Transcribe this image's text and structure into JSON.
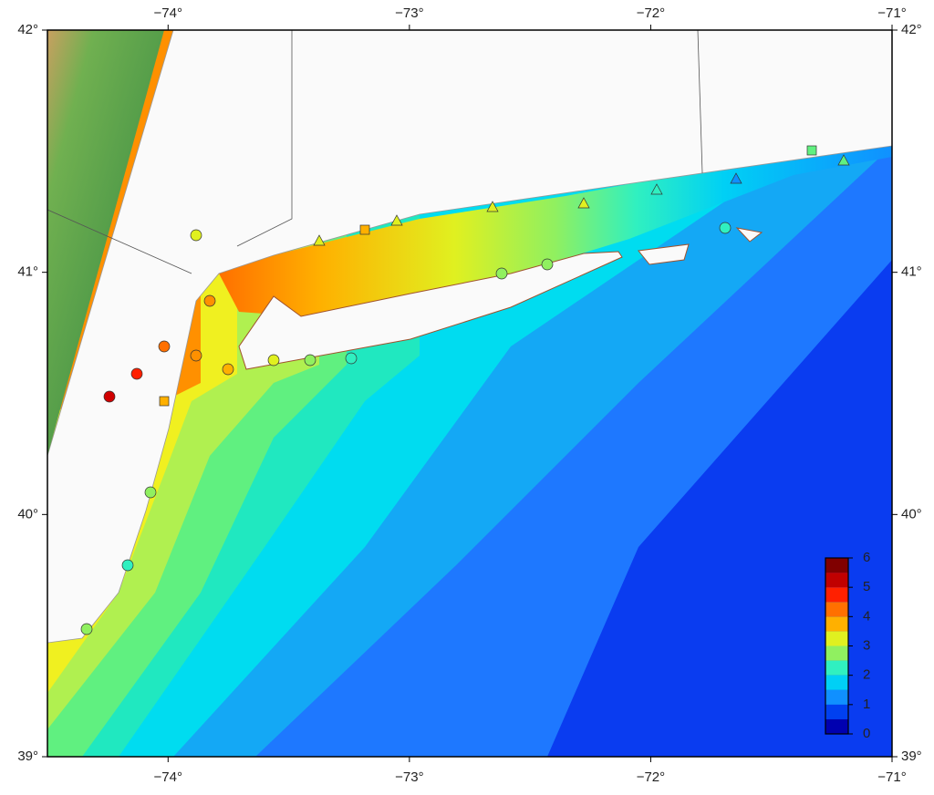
{
  "map": {
    "lon_ticks": [
      {
        "value": -74,
        "label": "−74°"
      },
      {
        "value": -73,
        "label": "−73°"
      },
      {
        "value": -72,
        "label": "−72°"
      },
      {
        "value": -71,
        "label": "−71°"
      }
    ],
    "lat_ticks": [
      {
        "value": 39,
        "label": "39°"
      },
      {
        "value": 40,
        "label": "40°"
      },
      {
        "value": 41,
        "label": "41°"
      },
      {
        "value": 42,
        "label": "42°"
      }
    ],
    "lon_range": [
      -74.5,
      -71
    ],
    "lat_range": [
      39,
      42
    ],
    "colorbar": {
      "lim": [
        0,
        6
      ],
      "ticks": [
        0,
        1,
        2,
        3,
        4,
        5,
        6
      ],
      "colors": [
        "#0000b0",
        "#0040f0",
        "#1090ff",
        "#00d0f5",
        "#30f0c0",
        "#90f060",
        "#e0f020",
        "#ffb000",
        "#ff7000",
        "#ff2000",
        "#c00000",
        "#800000"
      ]
    }
  }
}
